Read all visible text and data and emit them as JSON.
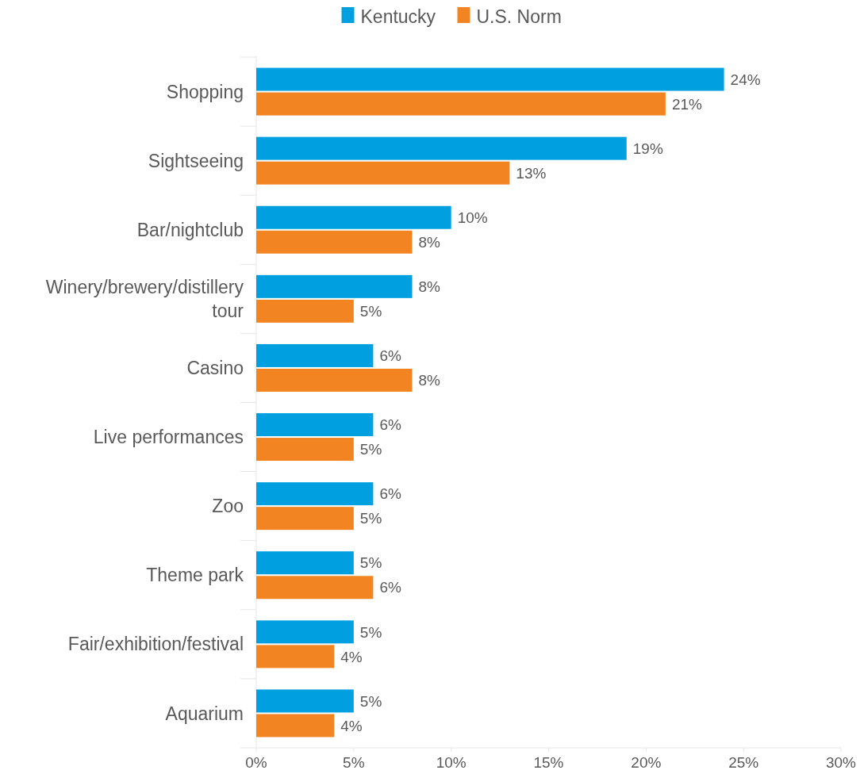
{
  "chart_data": {
    "type": "bar",
    "orientation": "horizontal",
    "categories": [
      "Shopping",
      "Sightseeing",
      "Bar/nightclub",
      "Winery/brewery/distillery tour",
      "Casino",
      "Live performances",
      "Zoo",
      "Theme park",
      "Fair/exhibition/festival",
      "Aquarium"
    ],
    "series": [
      {
        "name": "Kentucky",
        "color": "#00a0e0",
        "values": [
          24,
          19,
          10,
          8,
          6,
          6,
          6,
          5,
          5,
          5
        ],
        "value_labels": [
          "24%",
          "19%",
          "10%",
          "8%",
          "6%",
          "6%",
          "6%",
          "5%",
          "5%",
          "5%"
        ]
      },
      {
        "name": "U.S. Norm",
        "color": "#f28522",
        "values": [
          21,
          13,
          8,
          5,
          8,
          5,
          5,
          6,
          4,
          4
        ],
        "value_labels": [
          "21%",
          "13%",
          "8%",
          "5%",
          "8%",
          "5%",
          "5%",
          "6%",
          "4%",
          "4%"
        ]
      }
    ],
    "xlim": [
      0,
      30
    ],
    "xticks": [
      {
        "value": 0,
        "label": "0%"
      },
      {
        "value": 5,
        "label": "5%"
      },
      {
        "value": 10,
        "label": "10%"
      },
      {
        "value": 15,
        "label": "15%"
      },
      {
        "value": 20,
        "label": "20%"
      },
      {
        "value": 25,
        "label": "25%"
      },
      {
        "value": 30,
        "label": "30%"
      }
    ],
    "legend": "top"
  }
}
